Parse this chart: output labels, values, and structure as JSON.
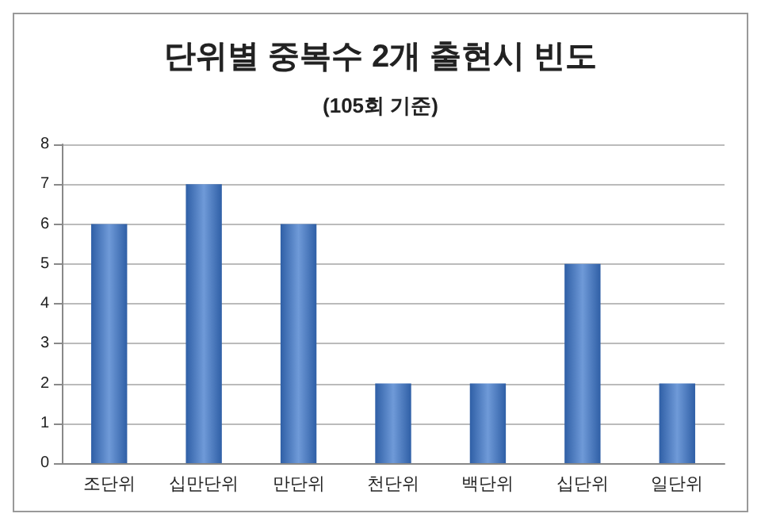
{
  "chart_data": {
    "type": "bar",
    "title": "단위별 중복수 2개 출현시 빈도",
    "subtitle": "(105회 기준)",
    "categories": [
      "조단위",
      "십만단위",
      "만단위",
      "천단위",
      "백단위",
      "십단위",
      "일단위"
    ],
    "values": [
      6,
      7,
      6,
      2,
      2,
      5,
      2
    ],
    "color": "#2f5fa6",
    "ylim": [
      0,
      8
    ],
    "yticks": [
      0,
      1,
      2,
      3,
      4,
      5,
      6,
      7,
      8
    ],
    "grid": "y"
  }
}
